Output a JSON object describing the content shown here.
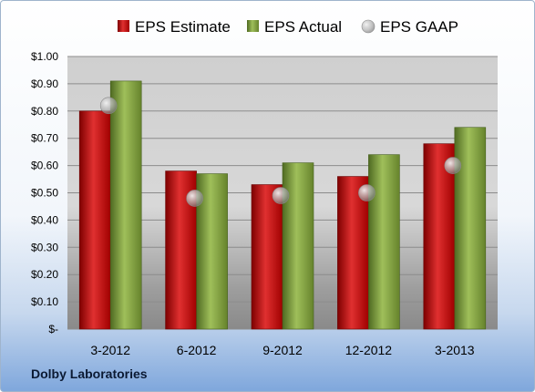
{
  "footer": {
    "company": "Dolby Laboratories"
  },
  "colors": {
    "estimate": "#c00000",
    "actual": "#77933c",
    "gaap": "#a6a6a6"
  },
  "chart_data": {
    "type": "bar",
    "categories": [
      "3-2012",
      "6-2012",
      "9-2012",
      "12-2012",
      "3-2013"
    ],
    "series": [
      {
        "name": "EPS Estimate",
        "kind": "bar",
        "values": [
          0.8,
          0.58,
          0.53,
          0.56,
          0.68
        ]
      },
      {
        "name": "EPS Actual",
        "kind": "bar",
        "values": [
          0.91,
          0.57,
          0.61,
          0.64,
          0.74
        ]
      },
      {
        "name": "EPS GAAP",
        "kind": "marker",
        "values": [
          0.82,
          0.48,
          0.49,
          0.5,
          0.6
        ]
      }
    ],
    "ylim": [
      0,
      1.0
    ],
    "yticks": [
      0,
      0.1,
      0.2,
      0.3,
      0.4,
      0.5,
      0.6,
      0.7,
      0.8,
      0.9,
      1.0
    ],
    "ytick_labels": [
      "$-",
      "$0.10",
      "$0.20",
      "$0.30",
      "$0.40",
      "$0.50",
      "$0.60",
      "$0.70",
      "$0.80",
      "$0.90",
      "$1.00"
    ],
    "legend": "top",
    "grid": true,
    "title": "",
    "xlabel": "",
    "ylabel": ""
  }
}
